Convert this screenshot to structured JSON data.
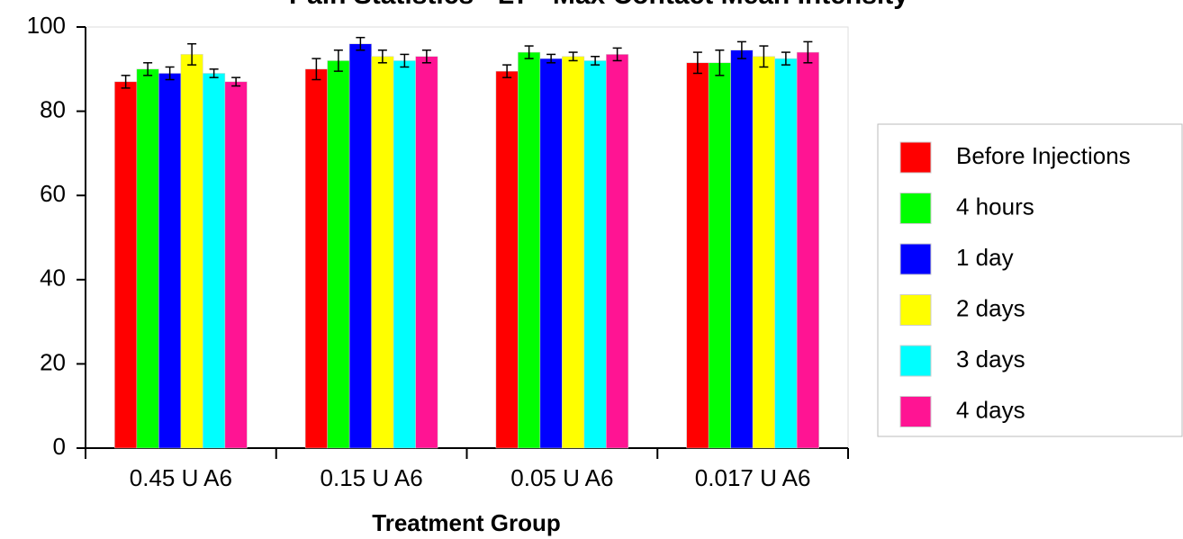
{
  "chart_data": {
    "type": "bar",
    "title": "Pain Statistics - LT - Max Contact Mean Intensity",
    "x_label": "Treatment Group",
    "categories": [
      "0.45 U A6",
      "0.15 U A6",
      "0.05 U A6",
      "0.017 U A6"
    ],
    "series": [
      {
        "name": "Before Injections",
        "color": "#ff0000",
        "values": [
          87,
          90,
          89.5,
          91.5
        ],
        "errors": [
          1.5,
          2.5,
          1.5,
          2.5
        ]
      },
      {
        "name": "4 hours",
        "color": "#00ff00",
        "values": [
          90,
          92,
          94,
          91.5
        ],
        "errors": [
          1.5,
          2.5,
          1.5,
          3
        ]
      },
      {
        "name": "1 day",
        "color": "#0000ff",
        "values": [
          89,
          96,
          92.5,
          94.5
        ],
        "errors": [
          1.5,
          1.5,
          1,
          2
        ]
      },
      {
        "name": "2 days",
        "color": "#ffff00",
        "values": [
          93.5,
          93,
          93,
          93
        ],
        "errors": [
          2.5,
          1.5,
          1,
          2.5
        ]
      },
      {
        "name": "3 days",
        "color": "#00ffff",
        "values": [
          89,
          92,
          92,
          92.5
        ],
        "errors": [
          1,
          1.5,
          1,
          1.5
        ]
      },
      {
        "name": "4 days",
        "color": "#ff1493",
        "values": [
          87,
          93,
          93.5,
          94
        ],
        "errors": [
          1,
          1.5,
          1.5,
          2.5
        ]
      }
    ],
    "ylim": [
      0,
      100
    ],
    "yticks": [
      0,
      20,
      40,
      60,
      80,
      100
    ],
    "legend": "right"
  }
}
